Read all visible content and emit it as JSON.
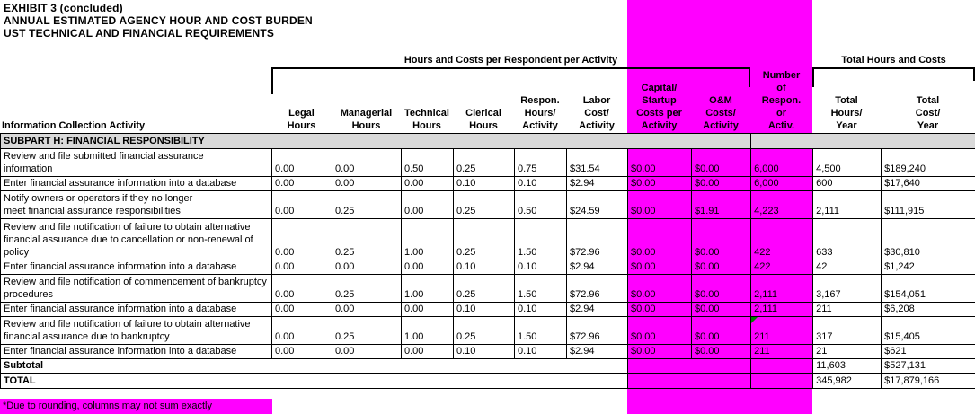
{
  "title": {
    "lines": [
      "EXHIBIT 3 (concluded)",
      "ANNUAL ESTIMATED AGENCY HOUR AND COST BURDEN",
      "UST TECHNICAL AND FINANCIAL REQUIREMENTS"
    ]
  },
  "colors": {
    "highlight": "#FF00FF",
    "section_background": "#D9D9D9",
    "error_marker": "#008000"
  },
  "span_headers": {
    "left": "Hours and Costs per Respondent per Activity",
    "right": "Total Hours and Costs"
  },
  "columns": [
    {
      "key": "activity",
      "label": "Information Collection Activity"
    },
    {
      "key": "legal-hours",
      "label": "Legal\nHours"
    },
    {
      "key": "managerial-hours",
      "label": "Managerial\nHours"
    },
    {
      "key": "technical-hours",
      "label": "Technical\nHours"
    },
    {
      "key": "clerical-hours",
      "label": "Clerical\nHours"
    },
    {
      "key": "respon-hours-per-activity",
      "label": "Respon.\nHours/\nActivity"
    },
    {
      "key": "labor-cost-per-activity",
      "label": "Labor\nCost/\nActivity"
    },
    {
      "key": "capital-startup-costs-per-activity",
      "label": "Capital/\nStartup\nCosts per\nActivity"
    },
    {
      "key": "om-costs-per-activity",
      "label": "O&M\nCosts/\nActivity"
    },
    {
      "key": "number-of-respon-or-activ",
      "label": "Number\nof\nRespon.\nor\nActiv."
    },
    {
      "key": "total-hours-per-year",
      "label": "Total\nHours/\nYear"
    },
    {
      "key": "total-cost-per-year",
      "label": "Total\nCost/\nYear"
    }
  ],
  "section": "SUBPART H: FINANCIAL RESPONSIBILITY",
  "rows": [
    {
      "activity": "Review and file submitted financial assurance\ninformation",
      "values": [
        "0.00",
        "0.00",
        "0.50",
        "0.25",
        "0.75",
        "$31.54",
        "$0.00",
        "$0.00",
        "6,000",
        "4,500",
        "$189,240"
      ]
    },
    {
      "activity": "Enter financial assurance information into a database",
      "values": [
        "0.00",
        "0.00",
        "0.00",
        "0.10",
        "0.10",
        "$2.94",
        "$0.00",
        "$0.00",
        "6,000",
        "600",
        "$17,640"
      ]
    },
    {
      "activity": "Notify owners or operators if they no longer\nmeet financial assurance responsibilities",
      "values": [
        "0.00",
        "0.25",
        "0.00",
        "0.25",
        "0.50",
        "$24.59",
        "$0.00",
        "$1.91",
        "4,223",
        "2,111",
        "$111,915"
      ]
    },
    {
      "activity": "Review and file notification of failure to obtain alternative\nfinancial assurance due to cancellation or non-renewal of\npolicy",
      "values": [
        "0.00",
        "0.25",
        "1.00",
        "0.25",
        "1.50",
        "$72.96",
        "$0.00",
        "$0.00",
        "422",
        "633",
        "$30,810"
      ]
    },
    {
      "activity": "Enter financial assurance information into a database",
      "values": [
        "0.00",
        "0.00",
        "0.00",
        "0.10",
        "0.10",
        "$2.94",
        "$0.00",
        "$0.00",
        "422",
        "42",
        "$1,242"
      ]
    },
    {
      "activity": "Review and file notification of commencement of bankruptcy\nprocedures",
      "values": [
        "0.00",
        "0.25",
        "1.00",
        "0.25",
        "1.50",
        "$72.96",
        "$0.00",
        "$0.00",
        "2,111",
        "3,167",
        "$154,051"
      ]
    },
    {
      "activity": "Enter financial assurance information into a database",
      "values": [
        "0.00",
        "0.00",
        "0.00",
        "0.10",
        "0.10",
        "$2.94",
        "$0.00",
        "$0.00",
        "2,111",
        "211",
        "$6,208"
      ]
    },
    {
      "activity": "Review and file notification of failure to obtain alternative\nfinancial assurance due to bankruptcy",
      "values": [
        "0.00",
        "0.25",
        "1.00",
        "0.25",
        "1.50",
        "$72.96",
        "$0.00",
        "$0.00",
        "211",
        "317",
        "$15,405"
      ],
      "marker": true
    },
    {
      "activity": "Enter financial assurance information into a database",
      "values": [
        "0.00",
        "0.00",
        "0.00",
        "0.10",
        "0.10",
        "$2.94",
        "$0.00",
        "$0.00",
        "211",
        "21",
        "$621"
      ]
    }
  ],
  "subtotal": {
    "label": "Subtotal",
    "total_hours": "11,603",
    "total_cost": "$527,131"
  },
  "total": {
    "label": "TOTAL",
    "total_hours": "345,982",
    "total_cost": "$17,879,166"
  },
  "footnote": "*Due to rounding, columns may not sum exactly"
}
